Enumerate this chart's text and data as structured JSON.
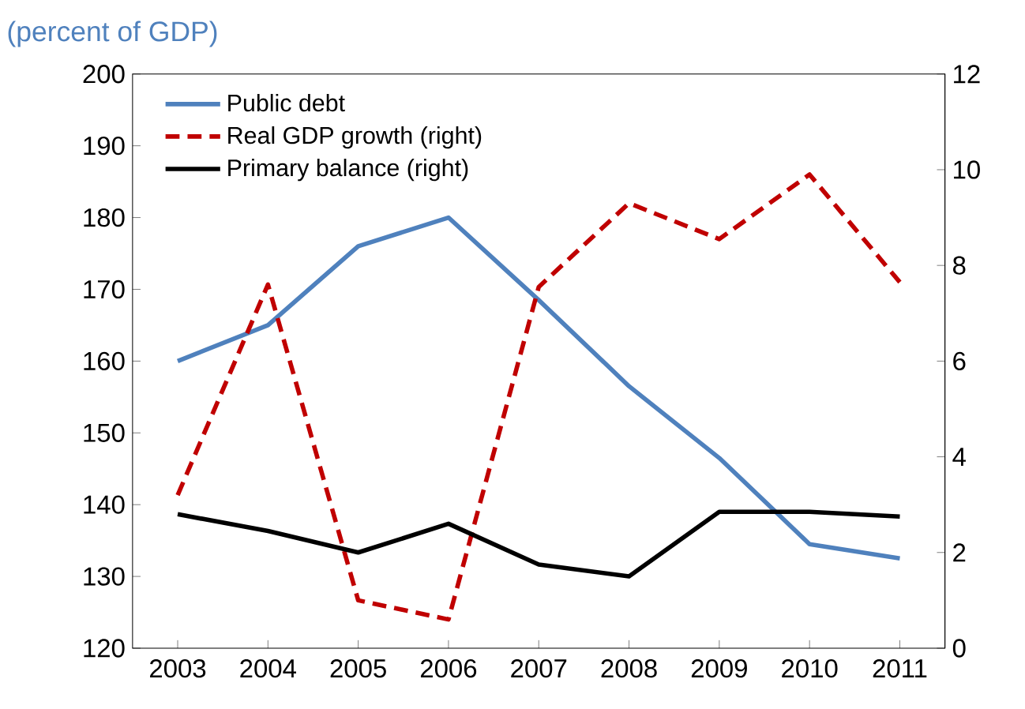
{
  "chart_data": {
    "type": "line",
    "title": "(percent of GDP)",
    "categories": [
      "2003",
      "2004",
      "2005",
      "2006",
      "2007",
      "2008",
      "2009",
      "2010",
      "2011"
    ],
    "series": [
      {
        "name": "Public debt",
        "color": "#4f81bd",
        "line_style": "solid",
        "values": [
          160,
          165,
          176,
          180,
          168.5,
          156.5,
          146.5,
          134.5,
          132.5
        ]
      },
      {
        "name": "Real GDP growth (right)",
        "color": "#c00000",
        "line_style": "dashed",
        "axis": "y2",
        "values": [
          3.2,
          7.6,
          1.0,
          0.6,
          7.55,
          9.3,
          8.55,
          9.9,
          7.65
        ]
      },
      {
        "name": "Primary balance (right)",
        "color": "#000000",
        "line_style": "solid",
        "axis": "y2",
        "values": [
          2.8,
          2.45,
          2.0,
          2.6,
          1.75,
          1.5,
          2.85,
          2.85,
          2.75
        ]
      }
    ],
    "ylim": [
      120,
      200
    ],
    "yticks": [
      120,
      130,
      140,
      150,
      160,
      170,
      180,
      190,
      200
    ],
    "y2lim": [
      0,
      12
    ],
    "y2ticks": [
      0,
      2,
      4,
      6,
      8,
      10,
      12
    ],
    "legend": "top left",
    "grid": false,
    "marker": "none"
  }
}
